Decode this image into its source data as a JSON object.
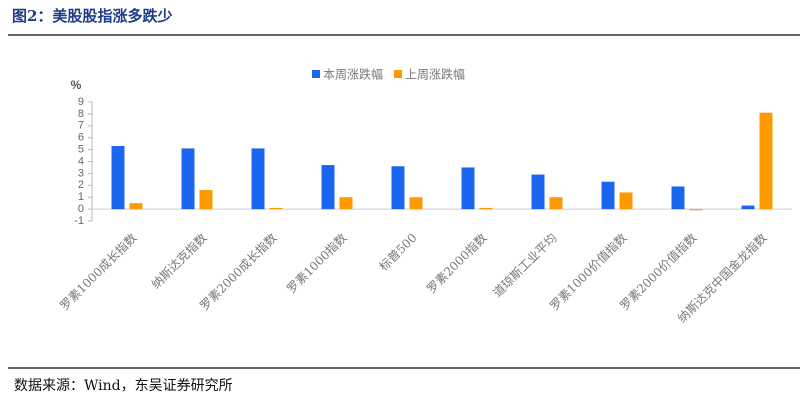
{
  "header": {
    "title": "图2：美股股指涨多跌少"
  },
  "footer": {
    "source": "数据来源：Wind，东吴证券研究所"
  },
  "chart_data": {
    "type": "bar",
    "y_label": "%",
    "categories": [
      "罗素1000成长指数",
      "纳斯达克指数",
      "罗素2000成长指数",
      "罗素1000指数",
      "标普500",
      "罗素2000指数",
      "道琼斯工业平均",
      "罗素1000价值指数",
      "罗素2000价值指数",
      "纳斯达克中国金龙指数"
    ],
    "series": [
      {
        "name": "本周涨跌幅",
        "color": "#1a66f0",
        "values": [
          5.3,
          5.1,
          5.1,
          3.7,
          3.6,
          3.5,
          2.9,
          2.3,
          1.9,
          0.3
        ]
      },
      {
        "name": "上周涨跌幅",
        "color": "#ff9900",
        "values": [
          0.5,
          1.6,
          0.1,
          1.0,
          1.0,
          0.1,
          1.0,
          1.4,
          -0.1,
          8.1
        ]
      }
    ],
    "ylim": [
      -1,
      9
    ],
    "yticks": [
      -1,
      0,
      1,
      2,
      3,
      4,
      5,
      6,
      7,
      8,
      9
    ],
    "legend": "top"
  }
}
